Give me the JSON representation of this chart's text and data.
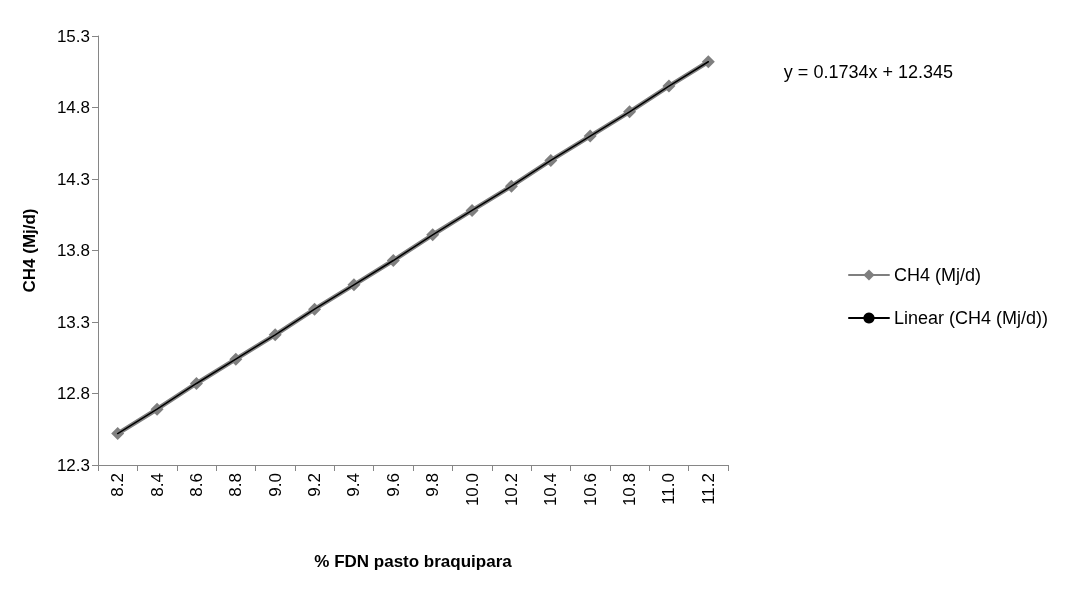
{
  "chart_data": {
    "type": "line",
    "xlabel": "% FDN pasto braquipara",
    "ylabel": "CH4 (Mj/d)",
    "categories": [
      "8.2",
      "8.4",
      "8.6",
      "8.8",
      "9.0",
      "9.2",
      "9.4",
      "9.6",
      "9.8",
      "10.0",
      "10.2",
      "10.4",
      "10.6",
      "10.8",
      "11.0",
      "11.2"
    ],
    "series": [
      {
        "name": "CH4 (Mj/d)",
        "color": "#7f7f7f",
        "marker": "diamond",
        "values": [
          12.52,
          12.69,
          12.87,
          13.04,
          13.21,
          13.39,
          13.56,
          13.73,
          13.91,
          14.08,
          14.25,
          14.43,
          14.6,
          14.77,
          14.95,
          15.12
        ]
      },
      {
        "name": "Linear (CH4 (Mj/d))",
        "color": "#000000",
        "marker": "none",
        "values": [
          12.52,
          12.69,
          12.87,
          13.04,
          13.21,
          13.39,
          13.56,
          13.73,
          13.91,
          14.08,
          14.25,
          14.43,
          14.6,
          14.77,
          14.95,
          15.12
        ]
      }
    ],
    "ylim": [
      12.3,
      15.3
    ],
    "yticks": [
      12.3,
      12.8,
      13.3,
      13.8,
      14.3,
      14.8,
      15.3
    ],
    "grid": false,
    "legend": "right",
    "line_style": "solid",
    "annotations": [
      "y = 0.1734x + 12.345"
    ]
  }
}
